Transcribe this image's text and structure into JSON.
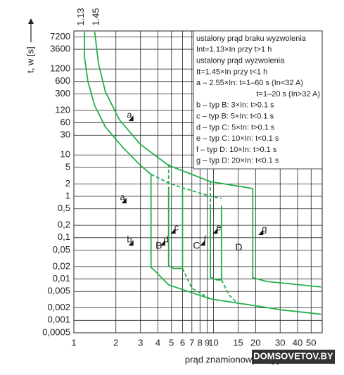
{
  "chart_data": {
    "type": "line",
    "x_label": "prąd znamionowy, In [-]",
    "y_label": "t, w [s]",
    "log_x": true,
    "log_y": true,
    "grid": true,
    "xlim": [
      1,
      60
    ],
    "ylim": [
      0.0005,
      10000
    ],
    "xticks": [
      1,
      2,
      3,
      4,
      5,
      6,
      7,
      8,
      9,
      10,
      15,
      20,
      30,
      40,
      50
    ],
    "yticks": [
      7200,
      3600,
      1200,
      600,
      300,
      120,
      60,
      30,
      10,
      5,
      2,
      1,
      {
        "value": 0.5,
        "label": "0,5"
      },
      {
        "value": 0.2,
        "label": "0,2"
      },
      {
        "value": 0.1,
        "label": "0,1"
      },
      {
        "value": 0.05,
        "label": "0,05"
      },
      {
        "value": 0.02,
        "label": "0,02"
      },
      {
        "value": 0.01,
        "label": "0,01"
      },
      {
        "value": 0.005,
        "label": "0,005"
      },
      {
        "value": 0.002,
        "label": "0,002"
      },
      {
        "value": 0.001,
        "label": "0,001"
      },
      {
        "value": 0.0005,
        "label": "0,0005"
      }
    ],
    "series": [
      {
        "color": "#22b14c",
        "dash": false,
        "x": [
          1.19,
          1.19,
          1.26,
          1.41,
          1.68,
          2.25,
          3.0,
          3.57,
          3.57,
          3.79,
          4.77,
          9.5,
          30.5,
          59
        ],
        "values": [
          9500,
          2400,
          610,
          156,
          48,
          15,
          5.6,
          3.4,
          0.019,
          0.016,
          0.0072,
          0.0033,
          0.0018,
          0.0014
        ]
      },
      {
        "color": "#22b14c",
        "dash": false,
        "x": [
          1.41,
          1.5,
          1.68,
          2.12,
          3.0,
          4.77,
          9.5,
          19.1,
          19.1,
          24.1,
          59
        ],
        "values": [
          9500,
          1630,
          341,
          71,
          18,
          5.6,
          2.27,
          1.54,
          0.0107,
          0.0087,
          0.0064
        ]
      },
      {
        "color": "#22b14c",
        "dash": true,
        "x": [
          3.57,
          4.77,
          6.0,
          9.5,
          11.4
        ],
        "values": [
          3.4,
          2.1,
          1.6,
          1.0,
          0.9
        ]
      },
      {
        "color": "#22b14c",
        "dash": false,
        "x": [
          4.77,
          4.77,
          5.2,
          6.0,
          6.0
        ],
        "values": [
          1.4,
          0.021,
          0.018,
          0.018,
          1.6
        ]
      },
      {
        "color": "#22b14c",
        "dash": true,
        "x": [
          4.77,
          4.77
        ],
        "values": [
          6.0,
          1.4
        ]
      },
      {
        "color": "#22b14c",
        "dash": false,
        "x": [
          9.5,
          9.5,
          10.5,
          11.4,
          11.4
        ],
        "values": [
          0.55,
          0.011,
          0.0095,
          0.0095,
          0.6
        ]
      },
      {
        "color": "#22b14c",
        "dash": true,
        "x": [
          9.5,
          9.5
        ],
        "values": [
          2.27,
          0.55
        ]
      },
      {
        "color": "#22b14c",
        "dash": true,
        "x": [
          6.0,
          7.0,
          9.5
        ],
        "values": [
          0.018,
          0.006,
          0.0033
        ]
      },
      {
        "color": "#22b14c",
        "dash": true,
        "x": [
          11.4,
          13,
          15
        ],
        "values": [
          0.0095,
          0.004,
          0.0025
        ]
      }
    ],
    "top_labels": [
      {
        "text": "1.13",
        "x": 1.13
      },
      {
        "text": "1.45",
        "x": 1.45
      }
    ],
    "annotations": [
      {
        "text": "a",
        "x": 2.67,
        "y": 77
      },
      {
        "text": "a",
        "x": 2.38,
        "y": 0.79
      },
      {
        "text": "b",
        "x": 2.67,
        "y": 0.075
      },
      {
        "text": "c",
        "x": 5.35,
        "y": 0.146
      },
      {
        "text": "d",
        "x": 4.5,
        "y": 0.075
      },
      {
        "text": "e",
        "x": 10.7,
        "y": 0.146
      },
      {
        "text": "f",
        "x": 8.7,
        "y": 0.075
      },
      {
        "text": "g",
        "x": 22.7,
        "y": 0.136
      },
      {
        "text": "B",
        "x": 4.06,
        "y": 0.062
      },
      {
        "text": "C",
        "x": 7.56,
        "y": 0.062
      },
      {
        "text": "D",
        "x": 15.2,
        "y": 0.057
      }
    ],
    "notes": [
      "ustalony prąd braku wyzwolenia",
      "Int=1.13×In przy t>1 h",
      "ustalony prąd wyzwolenia",
      "It=1.45×In przy t<1 h",
      "a – 2.55×In: t=1–60 s (In<32 A)",
      "t=1–20 s (In>32 A)",
      "b – typ B: 3×In: t>0.1 s",
      "c – typ B: 5×In: t<0.1 s",
      "d – typ C: 5×In: t>0.1 s",
      "e – typ C: 10×In: t<0.1 s",
      "f – typ D: 10×In: t>0.1 s",
      "g – typ D: 20×In: t<0.1 s"
    ],
    "watermark": "DOMSOVETOV.BY"
  }
}
